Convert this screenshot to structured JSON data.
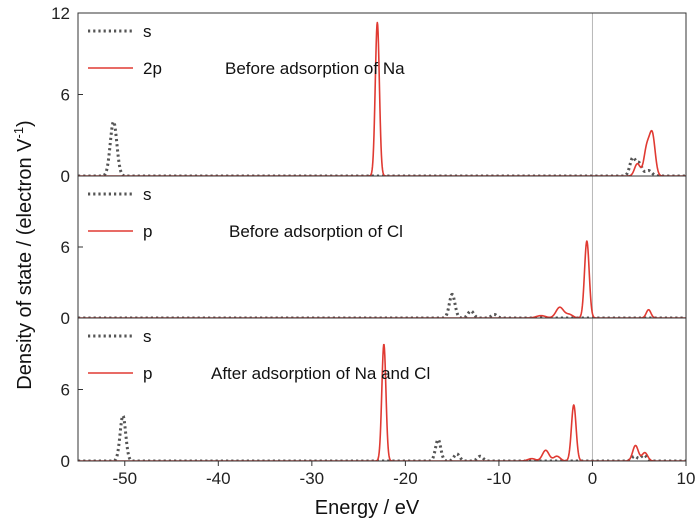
{
  "chart_data": {
    "type": "line",
    "xlabel": "Energy / eV",
    "ylabel": "Density of state / (electron V",
    "ylabel_sup": "-1",
    "ylabel_close": ")",
    "xlim": [
      -55,
      10
    ],
    "x_ticks": [
      -50,
      -40,
      -30,
      -20,
      -10,
      0,
      10
    ],
    "x_tick_labels": [
      "-50",
      "-40",
      "-30",
      "-20",
      "-10",
      "0",
      "10"
    ],
    "vline_x": 0,
    "colors": {
      "s": "#555555",
      "p": "#e03a32"
    },
    "panels": [
      {
        "annotation": "Before adsorption of Na",
        "ylim": [
          0,
          12
        ],
        "y_ticks": [
          0,
          6,
          12
        ],
        "y_tick_labels": [
          "0",
          "6",
          "12"
        ],
        "series": [
          {
            "name": "s",
            "style": "dotted",
            "peaks": [
              [
                -51.2,
                4.0,
                0.35
              ],
              [
                4.3,
                1.3,
                0.3
              ],
              [
                5.0,
                0.9,
                0.3
              ],
              [
                6.0,
                0.4,
                0.35
              ]
            ]
          },
          {
            "name": "2p",
            "style": "solid",
            "peaks": [
              [
                -23.0,
                11.3,
                0.22
              ],
              [
                4.8,
                0.9,
                0.3
              ],
              [
                5.8,
                2.0,
                0.3
              ],
              [
                6.4,
                3.0,
                0.3
              ]
            ]
          }
        ]
      },
      {
        "annotation": "Before adsorption  of Cl",
        "ylim": [
          0,
          12
        ],
        "y_ticks": [
          0,
          6
        ],
        "y_tick_labels": [
          "0",
          "6"
        ],
        "series": [
          {
            "name": "s",
            "style": "dotted",
            "peaks": [
              [
                -15.0,
                2.0,
                0.3
              ],
              [
                -13.0,
                0.6,
                0.3
              ],
              [
                -10.5,
                0.3,
                0.3
              ]
            ]
          },
          {
            "name": "p",
            "style": "solid",
            "peaks": [
              [
                -5.5,
                0.2,
                0.5
              ],
              [
                -3.5,
                0.9,
                0.4
              ],
              [
                -2.5,
                0.3,
                0.4
              ],
              [
                -0.6,
                6.5,
                0.25
              ],
              [
                6.0,
                0.7,
                0.25
              ]
            ]
          }
        ]
      },
      {
        "annotation": "After adsorption of Na and Cl",
        "ylim": [
          0,
          12
        ],
        "y_ticks": [
          0,
          6
        ],
        "y_tick_labels": [
          "0",
          "6"
        ],
        "series": [
          {
            "name": "s",
            "style": "dotted",
            "peaks": [
              [
                -50.2,
                3.8,
                0.3
              ],
              [
                -16.5,
                1.8,
                0.28
              ],
              [
                -14.5,
                0.6,
                0.3
              ],
              [
                -12.0,
                0.4,
                0.3
              ],
              [
                4.5,
                0.4,
                0.3
              ],
              [
                5.5,
                0.5,
                0.3
              ]
            ]
          },
          {
            "name": "p",
            "style": "solid",
            "peaks": [
              [
                -22.3,
                9.8,
                0.22
              ],
              [
                -6.5,
                0.2,
                0.4
              ],
              [
                -5.0,
                0.9,
                0.35
              ],
              [
                -3.8,
                0.4,
                0.35
              ],
              [
                -2.0,
                4.7,
                0.25
              ],
              [
                4.6,
                1.3,
                0.3
              ],
              [
                5.6,
                0.7,
                0.3
              ]
            ]
          }
        ]
      }
    ]
  }
}
